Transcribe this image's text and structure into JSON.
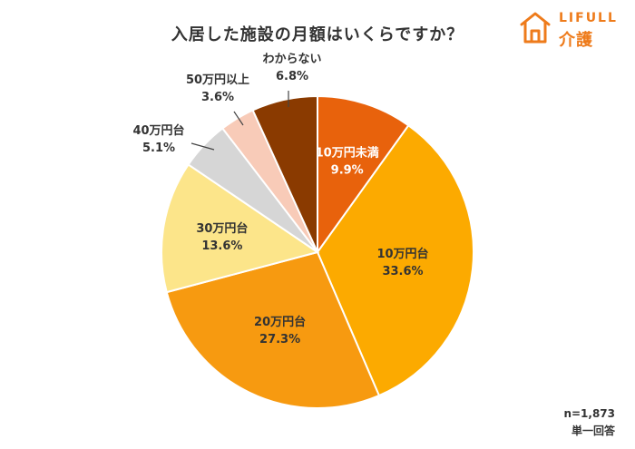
{
  "brand": {
    "name_en": "LIFULL",
    "name_jp": "介護",
    "color": "#ee7b1b"
  },
  "chart_data": {
    "type": "pie",
    "title": "入居した施設の月額はいくらですか？",
    "sample_size": "n=1,873",
    "question_type": "単一回答",
    "start_angle_deg": 0,
    "direction": "clockwise",
    "slices": [
      {
        "label": "10万円未満",
        "value": 9.9,
        "value_label": "9.9%",
        "color": "#e8620c",
        "label_color": "#ffffff"
      },
      {
        "label": "10万円台",
        "value": 33.6,
        "value_label": "33.6%",
        "color": "#fcaa00",
        "label_color": "#333333"
      },
      {
        "label": "20万円台",
        "value": 27.3,
        "value_label": "27.3%",
        "color": "#f79a10",
        "label_color": "#333333"
      },
      {
        "label": "30万円台",
        "value": 13.6,
        "value_label": "13.6%",
        "color": "#fce58a",
        "label_color": "#333333"
      },
      {
        "label": "40万円台",
        "value": 5.1,
        "value_label": "5.1%",
        "color": "#d6d6d6",
        "label_color": "#333333"
      },
      {
        "label": "50万円以上",
        "value": 3.6,
        "value_label": "3.6%",
        "color": "#f8cbb8",
        "label_color": "#333333"
      },
      {
        "label": "わからない",
        "value": 6.8,
        "value_label": "6.8%",
        "color": "#8a3a00",
        "label_color": "#333333"
      }
    ]
  }
}
